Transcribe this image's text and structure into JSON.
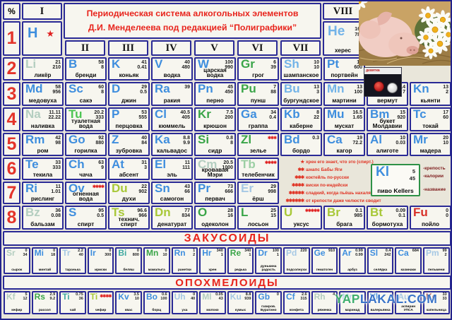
{
  "title": {
    "line1": "Периодическая система алкогольных элементов",
    "line2": "Д.И. Менделеева под редакцией “Полиграфики”"
  },
  "corner_label": "%",
  "groups": [
    "I",
    "II",
    "III",
    "IV",
    "V",
    "VI",
    "VII",
    "VIII"
  ],
  "periods": [
    "1",
    "2",
    "3",
    "4",
    "5",
    "6",
    "7",
    "8"
  ],
  "hydrogen": {
    "s": "H",
    "st": "★"
  },
  "helium": {
    "s": "He",
    "n": "херес",
    "v1": "16",
    "v2": "78"
  },
  "rows": [
    {
      "cells": [
        {
          "s": "Li",
          "n": "ликёр",
          "v1": "21",
          "v2": "210",
          "c": "pale"
        },
        {
          "s": "B",
          "n": "бренди",
          "v1": "58",
          "v2": "8",
          "c": "blue"
        },
        {
          "s": "K",
          "n": "коньяк",
          "v1": "41",
          "v2": "0.41",
          "c": "blue"
        },
        {
          "s": "V",
          "n": "водка",
          "v1": "40",
          "v2": "480",
          "c": "blue"
        },
        {
          "s": "W",
          "n": "царская водка",
          "v1": "100",
          "v2": "990",
          "c": "blue"
        },
        {
          "s": "Gr",
          "n": "грог",
          "v1": "6",
          "v2": "39",
          "c": "green"
        },
        {
          "s": "Sh",
          "n": "шампанское",
          "v1": "10",
          "v2": "10",
          "c": "lightblue"
        },
        {
          "s": "Pt",
          "n": "портвейн",
          "v1": "18",
          "v2": "600",
          "c": "blue"
        }
      ]
    },
    {
      "cells": [
        {
          "s": "Md",
          "n": "медовуха",
          "v1": "58",
          "v2": "956",
          "c": "blue"
        },
        {
          "s": "Sc",
          "n": "сакэ",
          "v1": "60",
          "v2": "8",
          "c": "blue"
        },
        {
          "s": "D",
          "n": "джин",
          "v1": "29",
          "v2": "0.5",
          "c": "blue"
        },
        {
          "s": "Ra",
          "n": "ракия",
          "v1": "39",
          "v2": "",
          "c": "blue"
        },
        {
          "s": "Pn",
          "n": "перно",
          "v1": "45",
          "v2": "450",
          "c": "blue"
        },
        {
          "s": "Pu",
          "n": "пунш",
          "v1": "7",
          "v2": "88",
          "c": "green"
        },
        {
          "s": "Bu",
          "n": "бургундское",
          "v1": "13",
          "v2": "3",
          "c": "lightblue"
        },
        {
          "s": "Mn",
          "n": "мартини",
          "v1": "13",
          "v2": "100",
          "c": "lightblue"
        },
        {
          "s": "Ve",
          "n": "вермут",
          "v1": "14",
          "v2": "7",
          "c": "blue"
        },
        {
          "s": "Kn",
          "n": "кьянти",
          "v1": "13",
          "v2": "2",
          "c": "blue"
        }
      ]
    },
    {
      "cells": [
        {
          "s": "Na",
          "n": "наливка",
          "v1": "11.11",
          "v2": "22.22",
          "c": "pale"
        },
        {
          "s": "Tu",
          "n": "туалетная вода",
          "v1": "20.2",
          "v2": "333",
          "c": "brightgreen"
        },
        {
          "s": "P",
          "n": "перцовка",
          "v1": "53",
          "v2": "555",
          "c": "blue"
        },
        {
          "s": "Cl",
          "n": "кюммель",
          "v1": "40.5",
          "v2": "405",
          "c": "blue"
        },
        {
          "s": "Kr",
          "n": "крюшон",
          "v1": "7.5",
          "v2": "200",
          "c": "green"
        },
        {
          "s": "Ga",
          "n": "граппа",
          "v1": "34",
          "v2": "0.4",
          "c": "blue"
        },
        {
          "s": "Kb",
          "n": "каберне",
          "v1": "8",
          "v2": "22",
          "c": "blue"
        },
        {
          "s": "Mu",
          "n": "мускат",
          "v1": "16.5",
          "v2": "1.65",
          "c": "blue"
        },
        {
          "s": "Bm",
          "n": "букет Молдавии",
          "v1": "15",
          "v2": "920",
          "c": "blue"
        },
        {
          "s": "Tc",
          "n": "токай",
          "v1": "17",
          "v2": "60",
          "c": "blue"
        }
      ]
    },
    {
      "cells": [
        {
          "s": "Rm",
          "n": "ром",
          "v1": "42",
          "v2": "98",
          "c": "blue"
        },
        {
          "s": "Go",
          "n": "горилка",
          "v1": "92",
          "v2": "880",
          "c": "blue"
        },
        {
          "s": "Z",
          "n": "зубровка",
          "v1": "40",
          "v2": "84",
          "c": "blue"
        },
        {
          "s": "Ka",
          "n": "кальвадос",
          "v1": "8.8",
          "v2": "9.9",
          "c": "blue"
        },
        {
          "s": "Si",
          "n": "сидр",
          "v1": "0.8",
          "v2": "8",
          "c": "green"
        },
        {
          "s": "Zl",
          "n": "зелье",
          "v1": "",
          "v2": "",
          "c": "green",
          "st": "✱✱✱"
        },
        {
          "s": "Bd",
          "n": "бордо",
          "v1": "0.3",
          "v2": "",
          "c": "blue"
        },
        {
          "s": "Ca",
          "n": "кагор",
          "v1": "19",
          "v2": "72.2",
          "c": "blue"
        },
        {
          "s": "Al",
          "n": "алиготе",
          "v1": "10",
          "v2": "0.03",
          "c": "blue"
        },
        {
          "s": "Mr",
          "n": "мадера",
          "v1": "20",
          "v2": "10",
          "c": "blue"
        }
      ]
    },
    {
      "cells": [
        {
          "s": "Te",
          "n": "текила",
          "v1": "33",
          "v2": "333",
          "c": "blue"
        },
        {
          "s": "Ch",
          "n": "чача",
          "v1": "63",
          "v2": "9",
          "c": "blue"
        },
        {
          "s": "At",
          "n": "абсент",
          "v1": "31",
          "v2": "3",
          "c": "blue"
        },
        {
          "s": "El",
          "n": "эль",
          "v1": "11",
          "v2": "111",
          "c": "blue"
        },
        {
          "s": "Cm",
          "n": "кровавая Мэри",
          "v1": "20.5",
          "v2": "1000",
          "c": "pale"
        },
        {
          "s": "Tb",
          "n": "телебенчик",
          "v1": "",
          "v2": "",
          "c": "palegreen",
          "st": "✱✱✱✱"
        }
      ]
    },
    {
      "cells": [
        {
          "s": "Ri",
          "n": "рислинг",
          "v1": "11",
          "v2": "1.01",
          "c": "blue"
        },
        {
          "s": "Ov",
          "n": "огненная вода",
          "v1": "",
          "v2": "",
          "c": "blue",
          "st": "✱✱✱✱"
        },
        {
          "s": "Du",
          "n": "духи",
          "v1": "22",
          "v2": "902",
          "c": "olive"
        },
        {
          "s": "Sn",
          "n": "самогон",
          "v1": "43",
          "v2": "66",
          "c": "blue"
        },
        {
          "s": "Pr",
          "n": "первач",
          "v1": "73",
          "v2": "666",
          "c": "blue"
        },
        {
          "s": "Er",
          "n": "ёрш",
          "v1": "29",
          "v2": "998",
          "c": "paleblue"
        }
      ]
    },
    {
      "cells": [
        {
          "s": "Bz",
          "n": "бальзам",
          "v1": "36",
          "v2": "0.08",
          "c": "pale"
        },
        {
          "s": "S",
          "n": "спирт",
          "v1": "95",
          "v2": "0.5",
          "c": "blue"
        },
        {
          "s": "Ts",
          "n": "технич. спирт",
          "v1": "96.6",
          "v2": "966",
          "c": "olive"
        },
        {
          "s": "Dn",
          "n": "денатурат",
          "v1": "77",
          "v2": "834",
          "c": "olive"
        },
        {
          "s": "O",
          "n": "одеколон",
          "v1": "28",
          "v2": "16",
          "c": "green"
        },
        {
          "s": "L",
          "n": "лосьон",
          "v1": "25",
          "v2": "15",
          "c": "green"
        },
        {
          "s": "U",
          "n": "уксус",
          "v1": "",
          "v2": "",
          "c": "olive",
          "st": "✱✱✱✱✱"
        },
        {
          "s": "Br",
          "n": "брага",
          "v1": "0.1",
          "v2": "985",
          "c": "olive"
        },
        {
          "s": "Bt",
          "n": "бормотуха",
          "v1": "0.09",
          "v2": "0.1",
          "c": "olive"
        },
        {
          "s": "Fu",
          "n": "пойло",
          "v1": "0",
          "v2": "0",
          "c": "fuRed"
        }
      ]
    }
  ],
  "legend": {
    "s": "Kl",
    "v1": "5",
    "v2": "45",
    "n": "пиво Kellers",
    "labels": [
      "-крепость",
      "-калории",
      "-название"
    ]
  },
  "footnotes": [
    {
      "m": "★",
      "t": "хрен его знает, что это (спирт.)"
    },
    {
      "m": "✱✱",
      "t": "шнапс Бабы Яги"
    },
    {
      "m": "✱✱✱",
      "t": "коктейль по-русски"
    },
    {
      "m": "✱✱✱✱",
      "t": "виски по-индейски"
    },
    {
      "m": "✱✱✱✱✱",
      "t": "сладкий, когда пьёшь нахаляву"
    },
    {
      "m": "✱✱✱✱✱✱",
      "t": "от крепости даже челюсти сводит"
    }
  ],
  "sections": {
    "snacks": "ЗАКУСОИДЫ",
    "hangover": "ОПОХМЕЛОИДЫ"
  },
  "snacks": [
    {
      "s": "Sr",
      "n": "сырок",
      "v1": "0",
      "v2": "34",
      "c": "pale"
    },
    {
      "s": "Mi",
      "n": "минтай",
      "v1": "0",
      "v2": "18",
      "c": "blue"
    },
    {
      "s": "Tr",
      "n": "таранька",
      "v1": "2.2",
      "v2": "40",
      "c": "paleblue"
    },
    {
      "s": "Ir",
      "n": "ириски",
      "v1": "0",
      "v2": "300",
      "c": "blue"
    },
    {
      "s": "Bi",
      "n": "беляш",
      "v1": "0",
      "v2": "800",
      "c": "teal"
    },
    {
      "s": "Mn",
      "n": "мамалыга",
      "v1": "0",
      "v2": "10",
      "c": "green"
    },
    {
      "s": "Rn",
      "n": "ранетки",
      "v1": "1",
      "v2": "2",
      "c": "blue"
    },
    {
      "s": "Hr",
      "n": "хрен",
      "v1": "340",
      "v2": "1",
      "c": "blue"
    },
    {
      "s": "Re",
      "n": "редька",
      "v1": "340",
      "v2": "1",
      "c": "green"
    },
    {
      "s": "Dr",
      "n": "дунькина радость",
      "v1": "100",
      "v2": "1",
      "c": "blue"
    },
    {
      "s": "Pd",
      "n": "подсолнухи",
      "v1": "220",
      "v2": "",
      "c": "paleblue"
    },
    {
      "s": "Ge",
      "n": "гематоген",
      "v1": "910",
      "v2": "",
      "c": "blue"
    },
    {
      "s": "Ar",
      "n": "арбуз",
      "v1": "0.99",
      "v2": "0.99",
      "c": "blue"
    },
    {
      "s": "Sl",
      "n": "селёдка",
      "v1": "0.4",
      "v2": "242",
      "c": "blue"
    },
    {
      "s": "Ca",
      "n": "казинаки",
      "v1": "684",
      "v2": "",
      "c": "blue"
    },
    {
      "s": "Pm",
      "n": "пельмени",
      "v1": "99",
      "v2": "2",
      "c": "paleblue"
    }
  ],
  "hangover": [
    {
      "s": "Kf",
      "n": "кефир",
      "v1": "5",
      "v2": "12",
      "c": "pale"
    },
    {
      "s": "Rs",
      "n": "рассол",
      "v1": "2.9",
      "v2": "9.2",
      "c": "green"
    },
    {
      "s": "Ti",
      "n": "чай",
      "v1": "0.75",
      "v2": "36",
      "c": "teal"
    },
    {
      "s": "Ti",
      "n": "чефир",
      "v1": "",
      "v2": "",
      "c": "olive",
      "st": "✱✱✱✱"
    },
    {
      "s": "Kv",
      "n": "квас",
      "v1": "3.5",
      "v2": "10",
      "c": "blue"
    },
    {
      "s": "Bo",
      "n": "борщ",
      "v1": "0.6",
      "v2": "100",
      "c": "blue"
    },
    {
      "s": "Uh",
      "n": "уха",
      "v1": "0",
      "v2": "40",
      "c": "paleblue"
    },
    {
      "s": "Ml",
      "n": "молоко",
      "v1": "0.05",
      "v2": "43",
      "c": "pale"
    },
    {
      "s": "Ku",
      "n": "кумыс",
      "v1": "8.8",
      "v2": "939",
      "c": "paleblue"
    },
    {
      "s": "Gb",
      "n": "газиров. Буратино",
      "v1": "0",
      "v2": "",
      "c": "blue"
    },
    {
      "s": "Cf",
      "n": "конфета",
      "v1": "2.6",
      "v2": "315",
      "c": "blue"
    },
    {
      "s": "Rh",
      "n": "ряженка",
      "v1": "4",
      "v2": "",
      "c": "pale"
    },
    {
      "s": "Mr",
      "n": "маринад",
      "v1": "",
      "v2": "",
      "c": "paleblue"
    },
    {
      "s": "Vk",
      "n": "валерьянка",
      "v1": "",
      "v2": "",
      "c": "blue"
    },
    {
      "s": "Au",
      "n": "аспирин УПСА",
      "v1": "",
      "v2": "",
      "c": "paleblue"
    },
    {
      "s": "Kc",
      "n": "капельница",
      "v1": "33",
      "v2": "33",
      "c": "darkred"
    }
  ],
  "beer_ad": {
    "label": "девятка"
  },
  "watermark": {
    "p1": "YAP",
    "p2": "LAKAL.COM"
  },
  "colors": {
    "blue": "#3e8ede",
    "lightblue": "#72b3e8",
    "paleblue": "#a6c8e4",
    "green": "#3aa548",
    "brightgreen": "#4ec553",
    "olive": "#a8c838",
    "pale": "#b4cec0",
    "palegreen": "#9ccfa4",
    "teal": "#3fa9a0",
    "fuRed": "#d83028",
    "darkred": "#8f2020",
    "accentRed": "#e8241c",
    "border": "#2a2a96",
    "legendGreen": "#2e9147"
  }
}
